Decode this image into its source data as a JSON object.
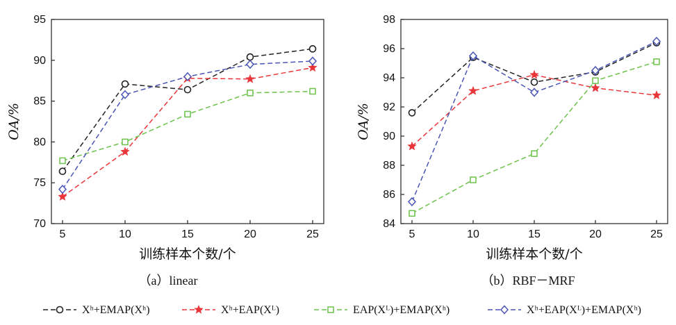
{
  "colors": {
    "black": "#222222",
    "red": "#e8363a",
    "green": "#6cc24a",
    "blue": "#4a55b5"
  },
  "legend": [
    {
      "series": 0,
      "label": "Xʰ+EMAP(Xʰ)",
      "marker": "circle",
      "color_key": "black"
    },
    {
      "series": 1,
      "label": "Xʰ+EAP(Xᴸ)",
      "marker": "star",
      "color_key": "red"
    },
    {
      "series": 2,
      "label": "EAP(Xᴸ)+EMAP(Xʰ)",
      "marker": "square",
      "color_key": "green"
    },
    {
      "series": 3,
      "label": "Xʰ+EAP(Xᴸ)+EMAP(Xʰ)",
      "marker": "diamond",
      "color_key": "blue"
    }
  ],
  "chart_data": [
    {
      "type": "line",
      "caption": "（a）linear",
      "xlabel": "训练样本个数/个",
      "ylabel": "OA/%",
      "x": [
        5,
        10,
        15,
        20,
        25
      ],
      "xticks": [
        "5",
        "10",
        "15",
        "20",
        "25"
      ],
      "ylim": [
        70,
        95
      ],
      "yticks": [
        "70",
        "75",
        "80",
        "85",
        "90",
        "95"
      ],
      "grid": false,
      "series": [
        {
          "values": [
            76.4,
            87.1,
            86.4,
            90.4,
            91.4
          ]
        },
        {
          "values": [
            73.3,
            78.8,
            87.8,
            87.7,
            89.1
          ]
        },
        {
          "values": [
            77.7,
            80.0,
            83.4,
            86.0,
            86.2
          ]
        },
        {
          "values": [
            74.2,
            85.8,
            88.0,
            89.5,
            89.9
          ]
        }
      ]
    },
    {
      "type": "line",
      "caption": "（b）RBF－MRF",
      "xlabel": "训练样本个数/个",
      "ylabel": "OA/%",
      "x": [
        5,
        10,
        15,
        20,
        25
      ],
      "xticks": [
        "5",
        "10",
        "15",
        "20",
        "25"
      ],
      "ylim": [
        84,
        98
      ],
      "yticks": [
        "84",
        "86",
        "88",
        "90",
        "92",
        "94",
        "96",
        "98"
      ],
      "grid": false,
      "series": [
        {
          "values": [
            91.6,
            95.4,
            93.7,
            94.4,
            96.4
          ]
        },
        {
          "values": [
            89.3,
            93.1,
            94.2,
            93.3,
            92.8
          ]
        },
        {
          "values": [
            84.7,
            87.0,
            88.8,
            93.8,
            95.1
          ]
        },
        {
          "values": [
            85.5,
            95.5,
            93.0,
            94.5,
            96.5
          ]
        }
      ]
    }
  ]
}
